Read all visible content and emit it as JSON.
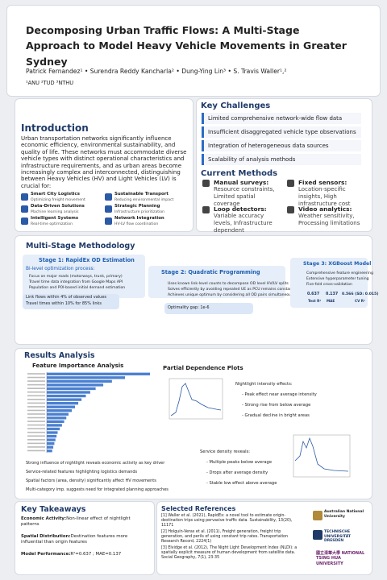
{
  "header": {
    "title": "Decomposing Urban Traffic Flows: A Multi-Stage Approach to Model Heavy Vehicle Movements in Greater Sydney",
    "authors": "Patrick Fernandez¹ • Surendra Reddy Kancharla² • Dung-Ying Lin³ • S. Travis Waller¹,²",
    "affiliations": "¹ANU ²TUD ³NTHU"
  },
  "introduction": {
    "heading": "Introduction",
    "text": "Urban transportation networks significantly influence economic efficiency, environmental sustainability, and quality of life. These networks must accommodate diverse vehicle types with distinct operational characteristics and infrastructure requirements, and as urban areas become increasingly complex and interconnected, distinguishing between Heavy Vehicles (HV) and Light Vehicles (LV) is crucial for:",
    "items": [
      {
        "title": "Smart City Logistics",
        "sub": "Optimizing freight movement"
      },
      {
        "title": "Sustainable Transport",
        "sub": "Reducing environmental impact"
      },
      {
        "title": "Data-Driven Solutions",
        "sub": "Machine learning analysis"
      },
      {
        "title": "Strategic Planning",
        "sub": "Infrastructure prioritization"
      },
      {
        "title": "Intelligent Systems",
        "sub": "Real-time optimization"
      },
      {
        "title": "Network Integration",
        "sub": "HV-LV flow coordination"
      }
    ]
  },
  "challenges": {
    "heading": "Key Challenges",
    "items": [
      "Limited comprehensive network-wide flow data",
      "Insufficient disaggregated vehicle type observations",
      "Integration of heterogeneous data sources",
      "Scalability of analysis methods"
    ]
  },
  "methods": {
    "heading": "Current Methods",
    "items": [
      {
        "title": "Manual surveys:",
        "text": "Resource constraints, Limited spatial coverage"
      },
      {
        "title": "Fixed sensors:",
        "text": "Location-specific insights, High infrastructure cost"
      },
      {
        "title": "Loop detectors:",
        "text": "Variable accuracy levels, Infrastructure dependent"
      },
      {
        "title": "Video analytics:",
        "text": "Weather sensitivity, Processing limitations"
      }
    ]
  },
  "methodology": {
    "heading": "Multi-Stage Methodology",
    "stages": [
      {
        "title": "Stage 1: RapidEx OD Estimation",
        "subtitle": "Bi-level optimization process:",
        "bullets": [
          "Focus on major roads (motorways, trunk, primary)",
          "Travel time data integration from Google Maps API",
          "Population and POI-based initial demand estimation"
        ],
        "notes": [
          "Link flows within 4% of observed values",
          "Travel times within 10% for 85% links"
        ]
      },
      {
        "title": "Stage 2: Quadratic Programming",
        "bullets": [
          "Uses known link-level counts to decompose OD level HV/LV splits",
          "Solves efficiently by avoiding repeated UE as PCU remains constant",
          "Achieves unique optimum by considering all OD pairs simultaneously"
        ],
        "notes": [
          "Optimality gap: 1e-6"
        ]
      },
      {
        "title": "Stage 3: XGBoost Model",
        "bullets": [
          "Comprehensive feature engineering",
          "Extensive hyperparameter tuning",
          "Five-fold cross-validation"
        ],
        "metrics": [
          {
            "value": "0.637",
            "label": "Test R²"
          },
          {
            "value": "0.137",
            "label": "MAE"
          },
          {
            "value": "0.566 (SD: 0.015)",
            "label": "CV R²"
          }
        ]
      }
    ]
  },
  "results": {
    "heading": "Results Analysis",
    "feature_importance": {
      "title": "Feature Importance Analysis",
      "values": [
        0.95,
        0.72,
        0.6,
        0.52,
        0.45,
        0.4,
        0.36,
        0.32,
        0.29,
        0.26,
        0.23,
        0.2,
        0.18,
        0.16,
        0.14,
        0.12,
        0.1,
        0.09,
        0.08,
        0.07,
        0.06,
        0.05
      ]
    },
    "bullets": [
      "Strong influence of nightlight reveals economic activity as key driver",
      "Service-related features highlighting logistics demands",
      "Spatial factors (area, density) significantly affect HV movements",
      "Multi-category imp. suggests need for integrated planning approaches"
    ],
    "pdp": {
      "title": "Partial Dependence Plots",
      "nightlight": {
        "heading": "Nightlight intensity effects:",
        "items": [
          "- Peak effect near average intensity",
          "- Strong rise from below average",
          "- Gradual decline in bright areas"
        ]
      },
      "service": {
        "heading": "Service density reveals:",
        "items": [
          "- Multiple peaks below average",
          "- Drops after average density",
          "- Stable low effect above average"
        ]
      }
    }
  },
  "takeaways": {
    "heading": "Key Takeaways",
    "items": [
      {
        "label": "Economic Activity:",
        "text": "Non-linear effect of nightlight patterns"
      },
      {
        "label": "Spatial Distribution:",
        "text": "Destination features more influential than origin features"
      },
      {
        "label": "Model Performance:",
        "text": "R²=0.637 ; MAE=0.137"
      }
    ]
  },
  "references": {
    "heading": "Selected References",
    "items": [
      "[1] Waller et al. (2021), RapidEx: a novel tool to estimate origin-destination trips using pervasive traffic data. Sustainability, 13(20), 11171",
      "[2] Holguín-Veras et al. (2011), Freight generation, freight trip generation, and perils of using constant trip rates. Transportation Research Record, 2224(1)",
      "[3] Elvidge et al. (2012), The Night Light Development Index (NLDI): a spatially explicit measure of human development from satellite data. Social Geography, 7(1), 23-35"
    ]
  },
  "logos": [
    "Australian National University",
    "TECHNISCHE UNIVERSITÄT DRESDEN",
    "國立清華大學 NATIONAL TSING HUA UNIVERSITY"
  ]
}
